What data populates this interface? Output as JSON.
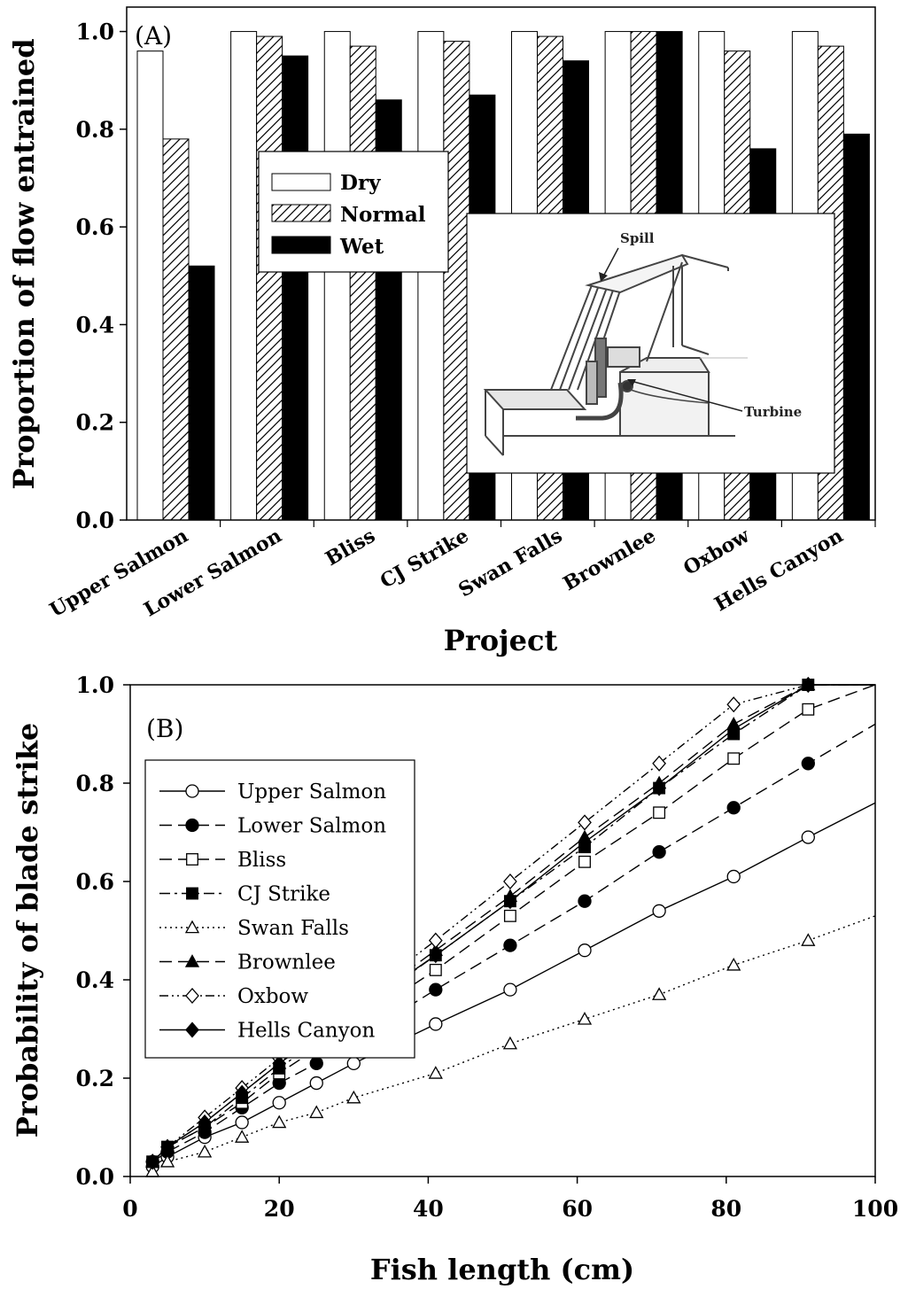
{
  "chart_data": [
    {
      "panel_label": "(A)",
      "type": "bar",
      "xlabel": "Project",
      "ylabel": "Proportion of flow entrained",
      "ylim": [
        0,
        1.05
      ],
      "yticks": [
        "0.0",
        "0.2",
        "0.4",
        "0.6",
        "0.8",
        "1.0"
      ],
      "categories": [
        "Upper Salmon",
        "Lower Salmon",
        "Bliss",
        "CJ Strike",
        "Swan Falls",
        "Brownlee",
        "Oxbow",
        "Hells Canyon"
      ],
      "series": [
        {
          "name": "Dry",
          "fill": "white",
          "values": [
            0.96,
            1.0,
            1.0,
            1.0,
            1.0,
            1.0,
            1.0,
            1.0
          ]
        },
        {
          "name": "Normal",
          "fill": "hatch",
          "values": [
            0.78,
            0.99,
            0.97,
            0.98,
            0.99,
            1.0,
            0.96,
            0.97
          ]
        },
        {
          "name": "Wet",
          "fill": "black",
          "values": [
            0.52,
            0.95,
            0.86,
            0.87,
            0.94,
            1.0,
            0.76,
            0.79
          ]
        }
      ],
      "legend_position": "upper-center",
      "inset": {
        "spill_label": "Spill",
        "turbine_label": "Turbine"
      }
    },
    {
      "panel_label": "(B)",
      "type": "line",
      "xlabel": "Fish length (cm)",
      "ylabel": "Probability of blade strike",
      "xlim": [
        0,
        100
      ],
      "ylim": [
        0,
        1.0
      ],
      "xticks": [
        "0",
        "20",
        "40",
        "60",
        "80",
        "100"
      ],
      "yticks": [
        "0.0",
        "0.2",
        "0.4",
        "0.6",
        "0.8",
        "1.0"
      ],
      "legend_position": "upper-left",
      "series": [
        {
          "name": "Upper Salmon",
          "marker": "circle-open",
          "dash": "solid",
          "x": [
            3,
            5,
            10,
            15,
            20,
            25,
            30,
            41,
            51,
            61,
            71,
            81,
            91
          ],
          "y": [
            0.02,
            0.04,
            0.08,
            0.11,
            0.15,
            0.19,
            0.23,
            0.31,
            0.38,
            0.46,
            0.54,
            0.61,
            0.69
          ],
          "line_end": 0.76
        },
        {
          "name": "Lower Salmon",
          "marker": "circle-filled",
          "dash": "long-dash",
          "x": [
            3,
            5,
            10,
            15,
            20,
            25,
            41,
            51,
            61,
            71,
            81,
            91
          ],
          "y": [
            0.03,
            0.05,
            0.09,
            0.14,
            0.19,
            0.23,
            0.38,
            0.47,
            0.56,
            0.66,
            0.75,
            0.84
          ],
          "line_end": 0.92
        },
        {
          "name": "Bliss",
          "marker": "square-open",
          "dash": "long-dash",
          "x": [
            3,
            5,
            10,
            15,
            20,
            41,
            51,
            61,
            71,
            81,
            91
          ],
          "y": [
            0.03,
            0.06,
            0.1,
            0.15,
            0.21,
            0.42,
            0.53,
            0.64,
            0.74,
            0.85,
            0.95
          ],
          "line_end": 1.0
        },
        {
          "name": "CJ Strike",
          "marker": "square-filled",
          "dash": "dash-dot",
          "x": [
            3,
            5,
            10,
            15,
            20,
            41,
            51,
            61,
            71,
            81,
            91
          ],
          "y": [
            0.03,
            0.06,
            0.1,
            0.16,
            0.22,
            0.45,
            0.56,
            0.67,
            0.79,
            0.9,
            1.0
          ],
          "line_end": 1.0
        },
        {
          "name": "Swan Falls",
          "marker": "triangle-open",
          "dash": "dotted",
          "x": [
            3,
            5,
            10,
            15,
            20,
            25,
            30,
            41,
            51,
            61,
            71,
            81,
            91
          ],
          "y": [
            0.01,
            0.03,
            0.05,
            0.08,
            0.11,
            0.13,
            0.16,
            0.21,
            0.27,
            0.32,
            0.37,
            0.43,
            0.48
          ],
          "line_end": 0.53
        },
        {
          "name": "Brownlee",
          "marker": "triangle-filled",
          "dash": "long-dash",
          "x": [
            3,
            5,
            10,
            15,
            20,
            41,
            51,
            61,
            71,
            81,
            91
          ],
          "y": [
            0.03,
            0.06,
            0.11,
            0.17,
            0.23,
            0.46,
            0.57,
            0.69,
            0.8,
            0.92,
            1.0
          ],
          "line_end": 1.0
        },
        {
          "name": "Oxbow",
          "marker": "diamond-open",
          "dash": "dash-dot-dot",
          "x": [
            3,
            5,
            10,
            15,
            20,
            41,
            51,
            61,
            71,
            81,
            91
          ],
          "y": [
            0.03,
            0.06,
            0.12,
            0.18,
            0.24,
            0.48,
            0.6,
            0.72,
            0.84,
            0.96,
            1.0
          ],
          "line_end": 1.0
        },
        {
          "name": "Hells Canyon",
          "marker": "diamond-filled",
          "dash": "solid",
          "x": [
            3,
            5,
            10,
            15,
            20,
            41,
            51,
            61,
            71,
            81,
            91
          ],
          "y": [
            0.03,
            0.06,
            0.11,
            0.17,
            0.23,
            0.45,
            0.56,
            0.68,
            0.79,
            0.91,
            1.0
          ],
          "line_end": 1.0
        }
      ]
    }
  ]
}
